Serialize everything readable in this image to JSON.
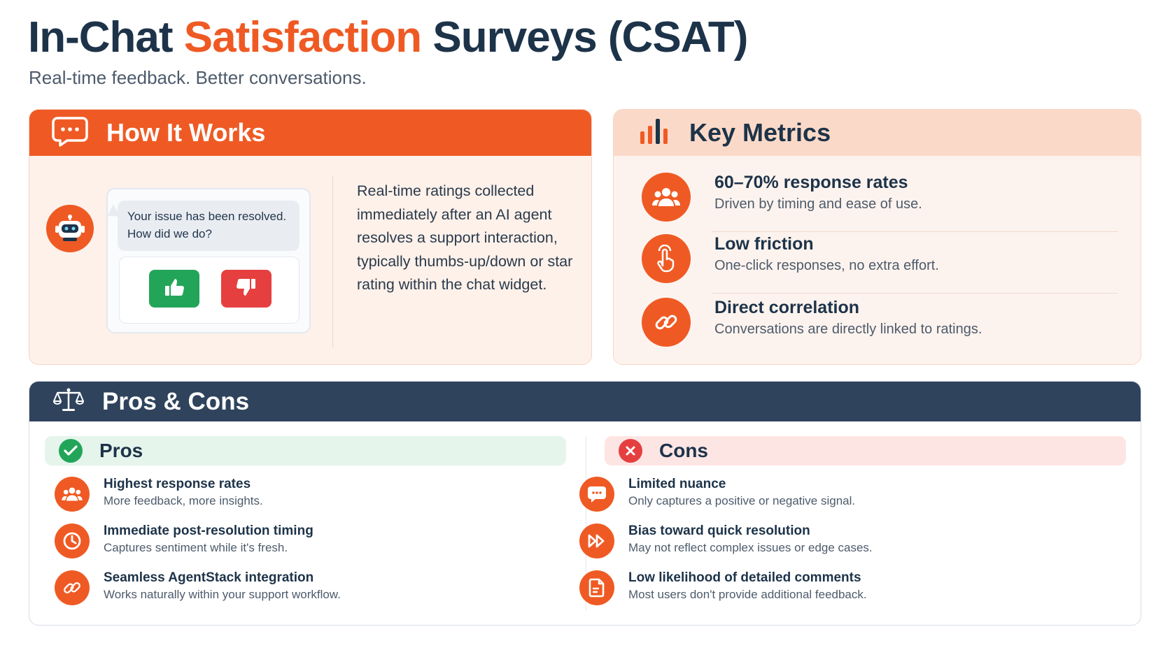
{
  "header": {
    "title_part1": "In-Chat ",
    "title_accent": "Satisfaction",
    "title_part2": " Surveys (CSAT)",
    "subtitle": "Real-time feedback. Better conversations."
  },
  "how_it_works": {
    "title": "How It Works",
    "icon": "chat-bubble-icon",
    "chat_message": "Your issue has been resolved. How did we do?",
    "vote_up_icon": "thumbs-up-icon",
    "vote_down_icon": "thumbs-down-icon",
    "description": "Real-time ratings collected immediately after an AI agent resolves a support interaction, typically thumbs-up/down or star rating within the chat widget."
  },
  "key_metrics": {
    "title": "Key Metrics",
    "icon": "bar-chart-icon",
    "items": [
      {
        "title": "60–70% response rates",
        "desc": "Driven by timing and ease of use.",
        "icon": "users-icon"
      },
      {
        "title": "Low friction",
        "desc": "One-click responses, no extra effort.",
        "icon": "tap-hand-icon"
      },
      {
        "title": "Direct correlation",
        "desc": "Conversations are directly linked to ratings.",
        "icon": "link-icon"
      }
    ]
  },
  "pros_cons": {
    "title": "Pros & Cons",
    "icon": "balance-scale-icon",
    "pros": {
      "title": "Pros",
      "items": [
        {
          "title": "Highest response rates",
          "desc": "More feedback, more insights.",
          "icon": "users-icon"
        },
        {
          "title": "Immediate post-resolution timing",
          "desc": "Captures sentiment while it's fresh.",
          "icon": "clock-icon"
        },
        {
          "title": "Seamless AgentStack integration",
          "desc": "Works naturally within your support workflow.",
          "icon": "link-icon"
        }
      ]
    },
    "cons": {
      "title": "Cons",
      "items": [
        {
          "title": "Limited nuance",
          "desc": "Only captures a positive or negative signal.",
          "icon": "chat-icon"
        },
        {
          "title": "Bias toward quick resolution",
          "desc": "May not reflect complex issues or edge cases.",
          "icon": "fast-forward-icon"
        },
        {
          "title": "Low likelihood of detailed comments",
          "desc": "Most users don't provide additional feedback.",
          "icon": "document-icon"
        }
      ]
    }
  },
  "colors": {
    "accent": "#ef5a24",
    "navy": "#1d3349",
    "pros_green": "#23a559",
    "cons_red": "#e5403f"
  }
}
